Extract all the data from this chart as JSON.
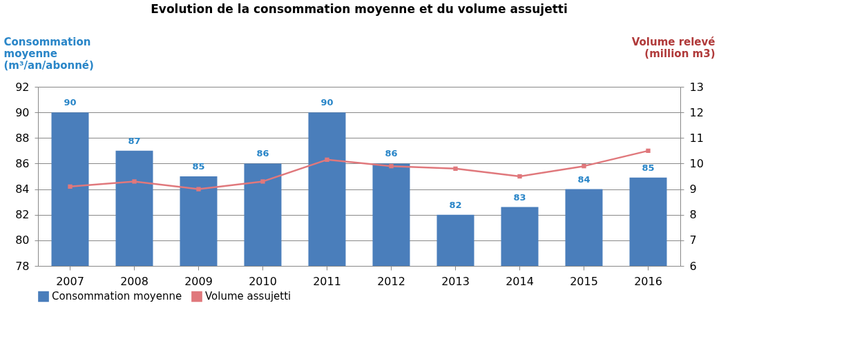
{
  "chart_data": {
    "type": "bar",
    "title": "Evolution de la consommation moyenne et du volume assujetti",
    "ylabel": "Consommation moyenne (m³/an/abonné)",
    "y2label": "Volume relevé (million m3)",
    "categories": [
      "2007",
      "2008",
      "2009",
      "2010",
      "2011",
      "2012",
      "2013",
      "2014",
      "2015",
      "2016"
    ],
    "series": [
      {
        "name": "Consommation moyenne",
        "color": "#4a7ebb",
        "values": [
          90,
          87,
          85,
          86,
          90,
          86,
          82,
          82.6,
          84,
          84.9
        ],
        "value_labels": [
          "90",
          "87",
          "85",
          "86",
          "90",
          "86",
          "82",
          "83",
          "84",
          "85"
        ]
      },
      {
        "name": "Volume assujetti",
        "type": "line",
        "axis": "y2",
        "color": "#e0787c",
        "marker": "square",
        "values": [
          9.1,
          9.3,
          9.0,
          9.3,
          10.15,
          9.9,
          9.8,
          9.5,
          9.9,
          10.5
        ]
      }
    ],
    "ylim": [
      78,
      92
    ],
    "yticks": [
      78,
      80,
      82,
      84,
      86,
      88,
      90,
      92
    ],
    "y2lim": [
      6,
      13
    ],
    "y2ticks": [
      6,
      7,
      8,
      9,
      10,
      11,
      12,
      13
    ],
    "grid": "y",
    "legend": "bottom"
  }
}
